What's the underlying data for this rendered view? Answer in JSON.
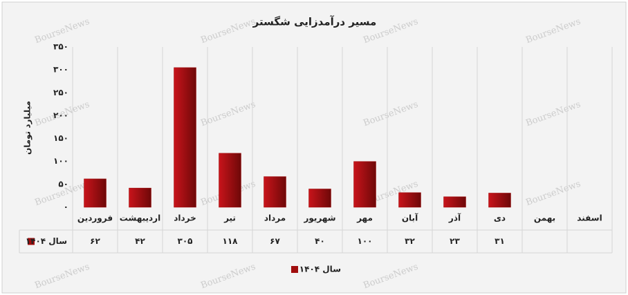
{
  "chart_data": {
    "type": "bar",
    "title": "مسیر درآمدزایی شگستر",
    "y_label": "میلیارد تومان",
    "watermark": "BourseNews",
    "categories": [
      "فروردین",
      "اردیبهشت",
      "خرداد",
      "تیر",
      "مرداد",
      "شهریور",
      "مهر",
      "آبان",
      "آذر",
      "دی",
      "بهمن",
      "اسفند"
    ],
    "series": [
      {
        "name": "سال ۱۴۰۴",
        "color": "#a00d0d",
        "values": [
          62,
          42,
          305,
          118,
          67,
          40,
          100,
          32,
          23,
          31,
          null,
          null
        ],
        "value_labels": [
          "۶۲",
          "۴۲",
          "۳۰۵",
          "۱۱۸",
          "۶۷",
          "۴۰",
          "۱۰۰",
          "۳۲",
          "۲۳",
          "۳۱",
          null,
          null
        ]
      }
    ],
    "ylim": [
      0,
      350
    ],
    "yticks": [
      {
        "value": 0,
        "label": "۰"
      },
      {
        "value": 50,
        "label": "۵۰"
      },
      {
        "value": 100,
        "label": "۱۰۰"
      },
      {
        "value": 150,
        "label": "۱۵۰"
      },
      {
        "value": 200,
        "label": "۲۰۰"
      },
      {
        "value": 250,
        "label": "۲۵۰"
      },
      {
        "value": 300,
        "label": "۳۰۰"
      },
      {
        "value": 350,
        "label": "۳۵۰"
      }
    ],
    "grid": "vertical",
    "legend": "bottom"
  }
}
